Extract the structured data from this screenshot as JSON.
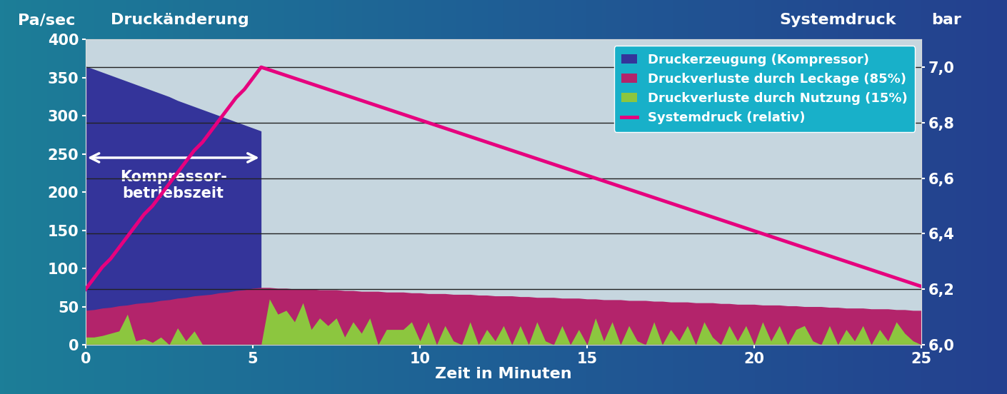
{
  "chart_data": {
    "type": "area",
    "x_label": "Zeit in Minuten",
    "y_label": "Druckänderung",
    "y_unit": "Pa/sec",
    "y2_label": "Systemdruck",
    "y2_unit": "bar",
    "stacked": false,
    "grid": true,
    "legend": "upper right",
    "xlim": [
      0,
      25
    ],
    "xticks": [
      0,
      5,
      10,
      15,
      20,
      25
    ],
    "ylim": [
      0,
      400
    ],
    "yticks": [
      0,
      50,
      100,
      150,
      200,
      250,
      300,
      350,
      400
    ],
    "y2lim": [
      6.0,
      7.1
    ],
    "y2ticks": [
      {
        "value": 6.0,
        "label": "6,0"
      },
      {
        "value": 6.2,
        "label": "6,2"
      },
      {
        "value": 6.4,
        "label": "6,4"
      },
      {
        "value": 6.6,
        "label": "6,6"
      },
      {
        "value": 6.8,
        "label": "6,8"
      },
      {
        "value": 7.0,
        "label": "7,0"
      }
    ],
    "annotation": {
      "text": "Kompressor-\nbetriebszeit",
      "x": [
        0,
        5.25
      ],
      "y": 245
    },
    "x": [
      0,
      0.25,
      0.5,
      0.75,
      1,
      1.25,
      1.5,
      1.75,
      2,
      2.25,
      2.5,
      2.75,
      3,
      3.25,
      3.5,
      3.75,
      4,
      4.25,
      4.5,
      4.75,
      5,
      5.25,
      5.5,
      5.75,
      6,
      6.25,
      6.5,
      6.75,
      7,
      7.25,
      7.5,
      7.75,
      8,
      8.25,
      8.5,
      8.75,
      9,
      9.25,
      9.5,
      9.75,
      10,
      10.25,
      10.5,
      10.75,
      11,
      11.25,
      11.5,
      11.75,
      12,
      12.25,
      12.5,
      12.75,
      13,
      13.25,
      13.5,
      13.75,
      14,
      14.25,
      14.5,
      14.75,
      15,
      15.25,
      15.5,
      15.75,
      16,
      16.25,
      16.5,
      16.75,
      17,
      17.25,
      17.5,
      17.75,
      18,
      18.25,
      18.5,
      18.75,
      19,
      19.25,
      19.5,
      19.75,
      20,
      20.25,
      20.5,
      20.75,
      21,
      21.25,
      21.5,
      21.75,
      22,
      22.25,
      22.5,
      22.75,
      23,
      23.25,
      23.5,
      23.75,
      24,
      24.25,
      24.5,
      24.75,
      25
    ],
    "series": [
      {
        "name": "Druckerzeugung (Kompressor)",
        "type": "area",
        "color": "#34349a",
        "values": [
          365,
          361,
          357,
          353,
          349,
          345,
          341,
          337,
          333,
          329,
          325,
          320,
          316,
          312,
          308,
          304,
          300,
          296,
          292,
          288,
          284,
          280,
          null,
          null,
          null,
          null,
          null,
          null,
          null,
          null,
          null,
          null,
          null,
          null,
          null,
          null,
          null,
          null,
          null,
          null,
          null,
          null,
          null,
          null,
          null,
          null,
          null,
          null,
          null,
          null,
          null,
          null,
          null,
          null,
          null,
          null,
          null,
          null,
          null,
          null,
          null,
          null,
          null,
          null,
          null,
          null,
          null,
          null,
          null,
          null,
          null,
          null,
          null,
          null,
          null,
          null,
          null,
          null,
          null,
          null,
          null,
          null,
          null,
          null,
          null,
          null,
          null,
          null,
          null,
          null,
          null,
          null,
          null,
          null,
          null,
          null,
          null,
          null,
          null,
          null,
          null
        ]
      },
      {
        "name": "Druckverluste durch Leckage (85%)",
        "type": "area",
        "color": "#b3246b",
        "values": [
          45,
          46,
          48,
          49,
          51,
          52,
          54,
          55,
          56,
          58,
          59,
          61,
          62,
          64,
          65,
          66,
          68,
          69,
          71,
          72,
          74,
          75,
          75,
          74,
          74,
          73,
          73,
          73,
          72,
          72,
          72,
          71,
          71,
          70,
          70,
          70,
          69,
          69,
          69,
          68,
          68,
          67,
          67,
          67,
          66,
          66,
          66,
          65,
          65,
          64,
          64,
          64,
          63,
          63,
          62,
          62,
          62,
          61,
          61,
          61,
          60,
          60,
          59,
          59,
          59,
          58,
          58,
          58,
          57,
          57,
          56,
          56,
          56,
          55,
          55,
          55,
          54,
          54,
          53,
          53,
          53,
          52,
          52,
          52,
          51,
          51,
          50,
          50,
          50,
          49,
          49,
          48,
          48,
          48,
          47,
          47,
          47,
          46,
          46,
          45,
          45
        ]
      },
      {
        "name": "Druckverluste durch Nutzung (15%)",
        "type": "area",
        "color": "#8cc63f",
        "values": [
          10,
          10,
          12,
          15,
          18,
          40,
          5,
          8,
          3,
          10,
          0,
          22,
          5,
          18,
          0,
          0,
          0,
          0,
          0,
          0,
          0,
          0,
          60,
          40,
          45,
          30,
          55,
          20,
          35,
          25,
          35,
          10,
          30,
          15,
          35,
          0,
          20,
          20,
          20,
          30,
          5,
          30,
          0,
          25,
          5,
          0,
          30,
          0,
          20,
          5,
          25,
          0,
          25,
          0,
          30,
          5,
          0,
          25,
          0,
          20,
          0,
          35,
          5,
          30,
          0,
          25,
          5,
          0,
          30,
          0,
          20,
          5,
          25,
          0,
          30,
          10,
          0,
          25,
          5,
          25,
          0,
          30,
          5,
          25,
          0,
          20,
          25,
          5,
          0,
          25,
          0,
          20,
          5,
          25,
          0,
          20,
          5,
          30,
          15,
          5,
          0
        ]
      },
      {
        "name": "Systemdruck (relativ)",
        "type": "line",
        "axis": "y2",
        "color": "#e6007e",
        "values": [
          6.2,
          6.24,
          6.28,
          6.31,
          6.35,
          6.39,
          6.43,
          6.47,
          6.5,
          6.54,
          6.58,
          6.62,
          6.66,
          6.7,
          6.73,
          6.77,
          6.81,
          6.85,
          6.89,
          6.92,
          6.96,
          7.0,
          6.99,
          6.98,
          6.97,
          6.96,
          6.95,
          6.94,
          6.93,
          6.92,
          6.91,
          6.9,
          6.89,
          6.88,
          6.87,
          6.86,
          6.85,
          6.84,
          6.83,
          6.82,
          6.81,
          6.8,
          6.79,
          6.78,
          6.77,
          6.76,
          6.75,
          6.74,
          6.73,
          6.72,
          6.71,
          6.7,
          6.69,
          6.68,
          6.67,
          6.66,
          6.65,
          6.64,
          6.63,
          6.62,
          6.61,
          6.6,
          6.59,
          6.58,
          6.57,
          6.56,
          6.55,
          6.54,
          6.53,
          6.52,
          6.51,
          6.5,
          6.49,
          6.48,
          6.47,
          6.46,
          6.45,
          6.44,
          6.43,
          6.42,
          6.41,
          6.4,
          6.39,
          6.38,
          6.37,
          6.36,
          6.35,
          6.34,
          6.33,
          6.32,
          6.31,
          6.3,
          6.29,
          6.28,
          6.27,
          6.26,
          6.25,
          6.24,
          6.23,
          6.22,
          6.21
        ]
      }
    ]
  }
}
